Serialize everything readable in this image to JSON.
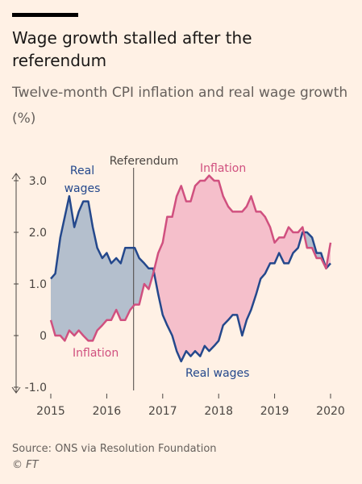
{
  "chart_data": {
    "type": "line",
    "title": "Wage growth stalled after the referendum",
    "subtitle": "Twelve-month CPI inflation and real wage growth (%)",
    "x": [
      2015.0,
      2015.08,
      2015.17,
      2015.25,
      2015.33,
      2015.42,
      2015.5,
      2015.58,
      2015.67,
      2015.75,
      2015.83,
      2015.92,
      2016.0,
      2016.08,
      2016.17,
      2016.25,
      2016.33,
      2016.42,
      2016.5,
      2016.58,
      2016.67,
      2016.75,
      2016.83,
      2016.92,
      2017.0,
      2017.08,
      2017.17,
      2017.25,
      2017.33,
      2017.42,
      2017.5,
      2017.58,
      2017.67,
      2017.75,
      2017.83,
      2017.92,
      2018.0,
      2018.08,
      2018.17,
      2018.25,
      2018.33,
      2018.42,
      2018.5,
      2018.58,
      2018.67,
      2018.75,
      2018.83,
      2018.92,
      2019.0,
      2019.08,
      2019.17,
      2019.25,
      2019.33,
      2019.42,
      2019.5,
      2019.58,
      2019.67,
      2019.75,
      2019.83,
      2019.92,
      2020.0
    ],
    "series": [
      {
        "name": "Real wages",
        "color": "#24488c",
        "values": [
          1.1,
          1.2,
          1.9,
          2.3,
          2.7,
          2.1,
          2.4,
          2.6,
          2.6,
          2.1,
          1.7,
          1.5,
          1.6,
          1.4,
          1.5,
          1.4,
          1.7,
          1.7,
          1.7,
          1.5,
          1.4,
          1.3,
          1.3,
          0.8,
          0.4,
          0.2,
          0.0,
          -0.3,
          -0.5,
          -0.3,
          -0.4,
          -0.3,
          -0.4,
          -0.2,
          -0.3,
          -0.2,
          -0.1,
          0.2,
          0.3,
          0.4,
          0.4,
          0.0,
          0.3,
          0.5,
          0.8,
          1.1,
          1.2,
          1.4,
          1.4,
          1.6,
          1.4,
          1.4,
          1.6,
          1.7,
          2.0,
          2.0,
          1.9,
          1.6,
          1.6,
          1.3,
          1.4
        ]
      },
      {
        "name": "Inflation",
        "color": "#d0507f",
        "values": [
          0.3,
          0.0,
          0.0,
          -0.1,
          0.1,
          0.0,
          0.1,
          0.0,
          -0.1,
          -0.1,
          0.1,
          0.2,
          0.3,
          0.3,
          0.5,
          0.3,
          0.3,
          0.5,
          0.6,
          0.6,
          1.0,
          0.9,
          1.2,
          1.6,
          1.8,
          2.3,
          2.3,
          2.7,
          2.9,
          2.6,
          2.6,
          2.9,
          3.0,
          3.0,
          3.1,
          3.0,
          3.0,
          2.7,
          2.5,
          2.4,
          2.4,
          2.4,
          2.5,
          2.7,
          2.4,
          2.4,
          2.3,
          2.1,
          1.8,
          1.9,
          1.9,
          2.1,
          2.0,
          2.0,
          2.1,
          1.7,
          1.7,
          1.5,
          1.5,
          1.3,
          1.8
        ]
      }
    ],
    "xlim": [
      2015,
      2020.3
    ],
    "xticks": [
      2015,
      2016,
      2017,
      2018,
      2019,
      2020
    ],
    "ylim": [
      -1,
      3
    ],
    "yticks": [
      {
        "value": -1,
        "label": "-1.0"
      },
      0,
      {
        "value": 1,
        "label": "1.0"
      },
      {
        "value": 2,
        "label": "2.0"
      },
      {
        "value": 3,
        "label": "3.0"
      }
    ],
    "annotations": [
      {
        "text": "Referendum",
        "x": 2016.48
      }
    ],
    "source": "Source: ONS via Resolution Foundation",
    "credit": "© FT"
  }
}
